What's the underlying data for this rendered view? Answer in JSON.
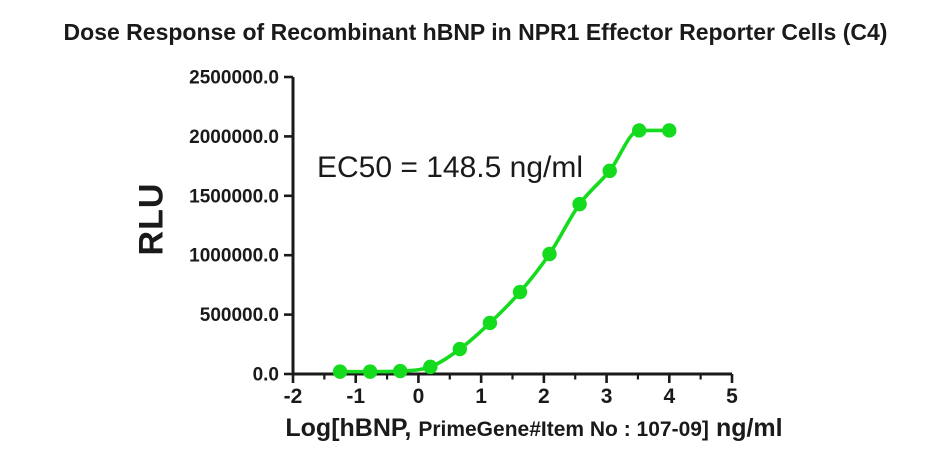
{
  "chart_data": {
    "type": "scatter",
    "title": "Dose Response of Recombinant hBNP in NPR1 Effector Reporter Cells (C4)",
    "ylabel": "RLU",
    "xlabel_parts": [
      "Log[hBNP,",
      "PrimeGene#Item No : 107-09]",
      "ng/ml"
    ],
    "annotation": "EC50 = 148.5 ng/ml",
    "xlim": [
      -2,
      5
    ],
    "ylim": [
      0,
      2500000
    ],
    "grid": false,
    "legend": "none",
    "x_ticks": [
      {
        "v": -2,
        "label": "-2"
      },
      {
        "v": -1,
        "label": "-1"
      },
      {
        "v": 0,
        "label": "0"
      },
      {
        "v": 1,
        "label": "1"
      },
      {
        "v": 2,
        "label": "2"
      },
      {
        "v": 3,
        "label": "3"
      },
      {
        "v": 4,
        "label": "4"
      },
      {
        "v": 5,
        "label": "5"
      }
    ],
    "x_minor_ticks": [
      -1.5,
      -0.5,
      0.5,
      1.5,
      2.5,
      3.5,
      4.5
    ],
    "y_ticks": [
      {
        "v": 0,
        "label": "0.0"
      },
      {
        "v": 500000,
        "label": "500000.0"
      },
      {
        "v": 1000000,
        "label": "1000000.0"
      },
      {
        "v": 1500000,
        "label": "1500000.0"
      },
      {
        "v": 2000000,
        "label": "2000000.0"
      },
      {
        "v": 2500000,
        "label": "2500000.0"
      }
    ],
    "series": [
      {
        "x": [
          -1.25,
          -0.77,
          -0.29,
          0.19,
          0.66,
          1.14,
          1.62,
          2.09,
          2.57,
          3.05,
          3.52,
          4.0
        ],
        "y": [
          20000,
          20000,
          25000,
          60000,
          210000,
          430000,
          690000,
          1010000,
          1430000,
          1710000,
          2050000,
          2050000
        ]
      }
    ],
    "colors": {
      "curve": "#15db1f",
      "axis": "#1a1a1a"
    }
  }
}
